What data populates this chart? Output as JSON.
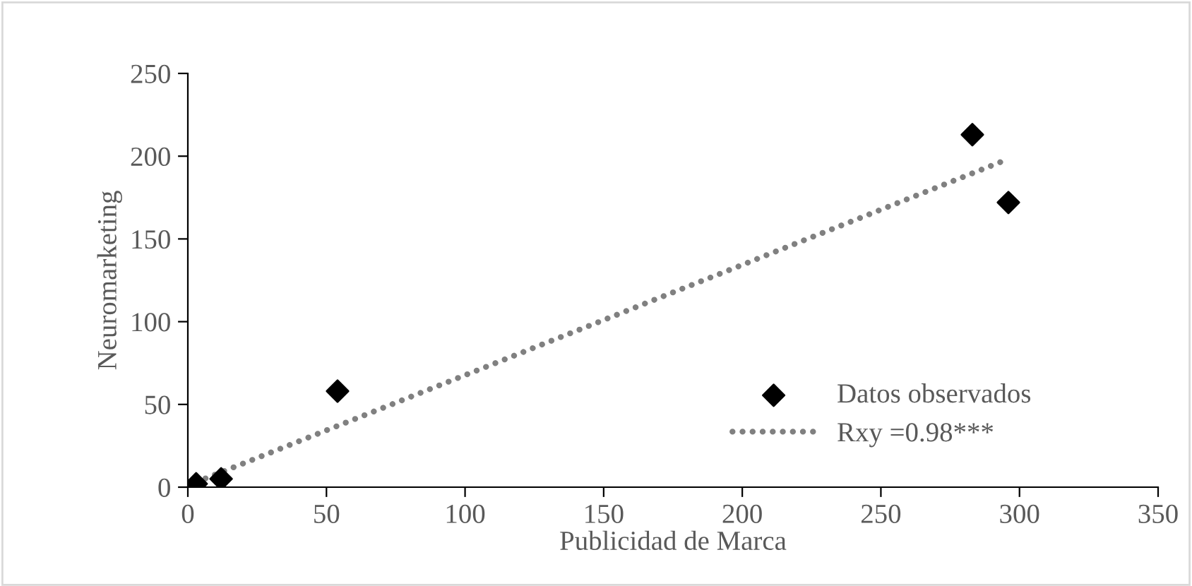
{
  "chart_data": {
    "type": "scatter",
    "xlabel": "Publicidad de Marca",
    "ylabel": "Neuromarketing",
    "xlim": [
      0,
      350
    ],
    "xticks": [
      0,
      50,
      100,
      150,
      200,
      250,
      300,
      350
    ],
    "ylim": [
      0,
      250
    ],
    "yticks": [
      0,
      50,
      100,
      150,
      200,
      250
    ],
    "grid": false,
    "legend": "bottom right",
    "series": [
      {
        "name": "Datos observados",
        "color": "#000000",
        "marker": "diamond",
        "x": [
          3,
          12,
          54,
          283,
          296
        ],
        "values": [
          2,
          5,
          58,
          213,
          172
        ]
      },
      {
        "name": "Rxy =0.98***",
        "type": "line",
        "color": "#808080",
        "line_style": "dotted",
        "marker": "none",
        "x": [
          3,
          294
        ],
        "values": [
          3,
          197
        ]
      }
    ]
  }
}
